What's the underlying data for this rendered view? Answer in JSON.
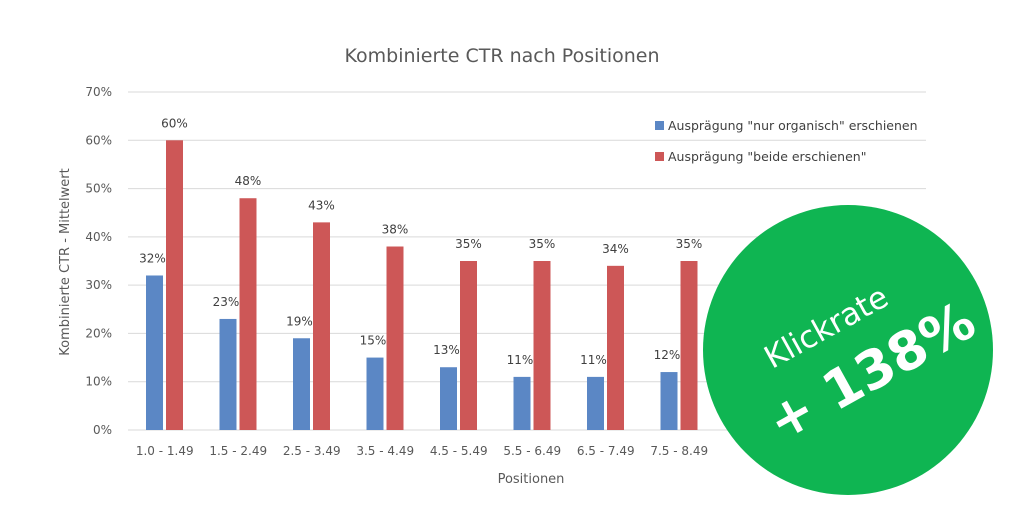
{
  "chart_data": {
    "type": "bar",
    "title": "Kombinierte CTR nach Positionen",
    "xlabel": "Positionen",
    "ylabel": "Kombinierte CTR - Mittelwert",
    "ylim": [
      0,
      70
    ],
    "ytick_labels": [
      "0%",
      "10%",
      "20%",
      "30%",
      "40%",
      "50%",
      "60%",
      "70%"
    ],
    "grid": true,
    "legend_position": "top-right",
    "categories": [
      "1.0 - 1.49",
      "1.5 - 2.49",
      "2.5 - 3.49",
      "3.5 - 4.49",
      "4.5 - 5.49",
      "5.5 - 6.49",
      "6.5 - 7.49",
      "7.5 - 8.49"
    ],
    "series": [
      {
        "name": "Ausprägung \"nur organisch\" erschienen",
        "color": "#5b87c5",
        "values": [
          32,
          23,
          19,
          15,
          13,
          11,
          11,
          12
        ],
        "labels": [
          "32%",
          "23%",
          "19%",
          "15%",
          "13%",
          "11%",
          "11%",
          "12%"
        ]
      },
      {
        "name": "Ausprägung \"beide erschienen\"",
        "color": "#cd5757",
        "values": [
          60,
          48,
          43,
          38,
          35,
          35,
          34,
          35
        ],
        "labels": [
          "60%",
          "48%",
          "43%",
          "38%",
          "35%",
          "35%",
          "34%",
          "35%"
        ]
      }
    ]
  },
  "badge": {
    "line1": "Klickrate",
    "line2": "+ 138%",
    "color": "#0fb552"
  }
}
